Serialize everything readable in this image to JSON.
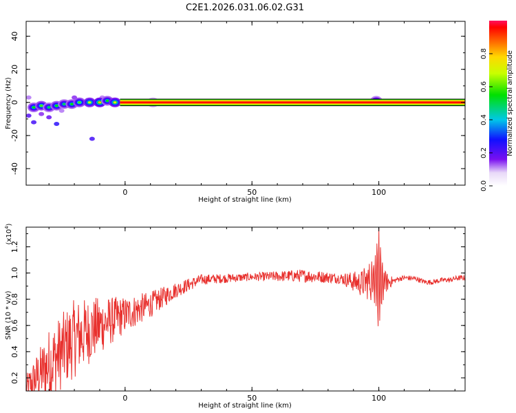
{
  "title": "C2E1.2026.031.06.02.G31",
  "colorbar": {
    "label": "Normalized spectral amplitude",
    "ticks": [
      "0.0",
      "0.2",
      "0.4",
      "0.6",
      "0.8"
    ]
  },
  "chart_data": [
    {
      "type": "heatmap",
      "xlabel": "Height of straight line (km)",
      "ylabel": "Frequency (Hz)",
      "xlim": [
        -39,
        134
      ],
      "ylim": [
        -50,
        49
      ],
      "x_ticks": [
        "0",
        "50",
        "100"
      ],
      "y_ticks": [
        "40",
        "20",
        "0",
        "-20",
        "-40"
      ],
      "ridge": {
        "x_start": -2,
        "x_end": 134,
        "frequency": 0,
        "amplitude": 0.95
      },
      "blobs": [
        {
          "x": -36,
          "f": -3,
          "a": 0.55
        },
        {
          "x": -33,
          "f": -2,
          "a": 0.6
        },
        {
          "x": -30,
          "f": -3,
          "a": 0.5
        },
        {
          "x": -27,
          "f": -2,
          "a": 0.55
        },
        {
          "x": -24,
          "f": -1,
          "a": 0.5
        },
        {
          "x": -21,
          "f": -1,
          "a": 0.55
        },
        {
          "x": -18,
          "f": 0,
          "a": 0.6
        },
        {
          "x": -14,
          "f": 0,
          "a": 0.7
        },
        {
          "x": -10,
          "f": 0,
          "a": 0.8
        },
        {
          "x": -7,
          "f": 1,
          "a": 0.55
        },
        {
          "x": -4,
          "f": 0,
          "a": 0.75
        },
        {
          "x": 11,
          "f": 0,
          "a": 0.35
        },
        {
          "x": 99,
          "f": 1,
          "a": 0.45
        }
      ],
      "scatter_noise": [
        {
          "x": -38,
          "f": -8,
          "a": 0.2
        },
        {
          "x": -36,
          "f": -12,
          "a": 0.22
        },
        {
          "x": -33,
          "f": -7,
          "a": 0.15
        },
        {
          "x": -30,
          "f": -9,
          "a": 0.18
        },
        {
          "x": -27,
          "f": -13,
          "a": 0.25
        },
        {
          "x": -25,
          "f": -5,
          "a": 0.12
        },
        {
          "x": -13,
          "f": -22,
          "a": 0.22
        },
        {
          "x": -38,
          "f": 3,
          "a": 0.12
        },
        {
          "x": -20,
          "f": 3,
          "a": 0.15
        },
        {
          "x": -9,
          "f": 3,
          "a": 0.12
        }
      ]
    },
    {
      "type": "line",
      "xlabel": "Height of straight line (km)",
      "ylabel": "SNR (10 * v/v)",
      "y_exponent": "(x10",
      "y_exponent_power": "4",
      "y_exponent_close": ")",
      "xlim": [
        -39,
        134
      ],
      "ylim": [
        0.1,
        1.35
      ],
      "x_ticks": [
        "0",
        "50",
        "100"
      ],
      "y_ticks": [
        "0.2",
        "0.4",
        "0.6",
        "0.8",
        "1.0",
        "1.2"
      ],
      "color": "#e8302d",
      "envelope": [
        {
          "x": -39,
          "mean": 0.12,
          "amp": 0.1
        },
        {
          "x": -30,
          "mean": 0.3,
          "amp": 0.28
        },
        {
          "x": -20,
          "mean": 0.5,
          "amp": 0.3
        },
        {
          "x": -10,
          "mean": 0.6,
          "amp": 0.22
        },
        {
          "x": 0,
          "mean": 0.68,
          "amp": 0.14
        },
        {
          "x": 10,
          "mean": 0.76,
          "amp": 0.1
        },
        {
          "x": 20,
          "mean": 0.87,
          "amp": 0.06
        },
        {
          "x": 30,
          "mean": 0.95,
          "amp": 0.04
        },
        {
          "x": 50,
          "mean": 0.97,
          "amp": 0.03
        },
        {
          "x": 70,
          "mean": 0.98,
          "amp": 0.05
        },
        {
          "x": 85,
          "mean": 0.96,
          "amp": 0.04
        },
        {
          "x": 93,
          "mean": 0.92,
          "amp": 0.1
        },
        {
          "x": 98,
          "mean": 0.95,
          "amp": 0.18
        },
        {
          "x": 100,
          "mean": 0.95,
          "amp": 0.45
        },
        {
          "x": 102,
          "mean": 0.93,
          "amp": 0.1
        },
        {
          "x": 106,
          "mean": 0.92,
          "amp": 0.02
        },
        {
          "x": 115,
          "mean": 0.97,
          "amp": 0.02
        },
        {
          "x": 128,
          "mean": 0.92,
          "amp": 0.02
        },
        {
          "x": 134,
          "mean": 0.97,
          "amp": 0.02
        }
      ]
    }
  ]
}
